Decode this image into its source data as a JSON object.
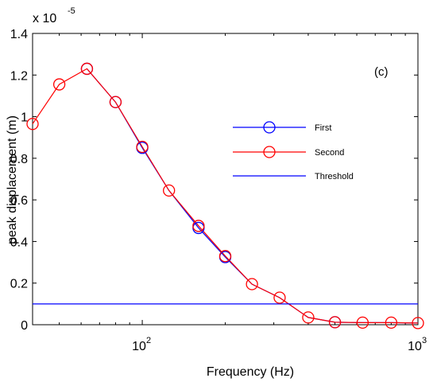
{
  "chart_data": {
    "type": "line",
    "xlabel": "Frequency (Hz)",
    "ylabel": "peak displacement (m)",
    "x_scale": "log",
    "xlim": [
      40,
      1000
    ],
    "ylim": [
      0,
      1.4
    ],
    "y_multiplier_base": "x 10",
    "y_multiplier_exp": "-5",
    "xtick_base": "10",
    "xticks": [
      {
        "value": 100,
        "exp": "2"
      },
      {
        "value": 1000,
        "exp": "3"
      }
    ],
    "yticks": [
      "0",
      "0.2",
      "0.4",
      "0.6",
      "0.8",
      "1",
      "1.2",
      "1.4"
    ],
    "annotation": "(c)",
    "grid": false,
    "legend_position": "right",
    "series": [
      {
        "name": "First",
        "color": "#0000ff",
        "marker": "circle",
        "x": [
          63,
          80,
          100,
          125,
          160,
          200,
          250,
          315,
          400,
          500,
          630,
          800,
          1000
        ],
        "values": [
          1.23,
          1.07,
          0.85,
          0.645,
          0.465,
          0.325,
          0.195,
          0.13,
          0.035,
          0.012,
          0.01,
          0.01,
          0.008
        ],
        "marker_indices": [
          0,
          1,
          2,
          4,
          5,
          9
        ]
      },
      {
        "name": "Second",
        "color": "#ff0000",
        "marker": "circle",
        "x": [
          40,
          50,
          63,
          80,
          100,
          125,
          160,
          200,
          250,
          315,
          400,
          500,
          630,
          800,
          1000
        ],
        "values": [
          0.965,
          1.155,
          1.23,
          1.07,
          0.855,
          0.645,
          0.475,
          0.33,
          0.195,
          0.13,
          0.035,
          0.012,
          0.01,
          0.01,
          0.008
        ],
        "marker_indices": [
          0,
          1,
          2,
          3,
          4,
          5,
          6,
          7,
          8,
          9,
          10,
          11,
          12,
          13,
          14
        ]
      },
      {
        "name": "Threshold",
        "color": "#0000ff",
        "marker": "none",
        "x": [
          40,
          1000
        ],
        "values": [
          0.1,
          0.1
        ],
        "marker_indices": []
      }
    ]
  }
}
